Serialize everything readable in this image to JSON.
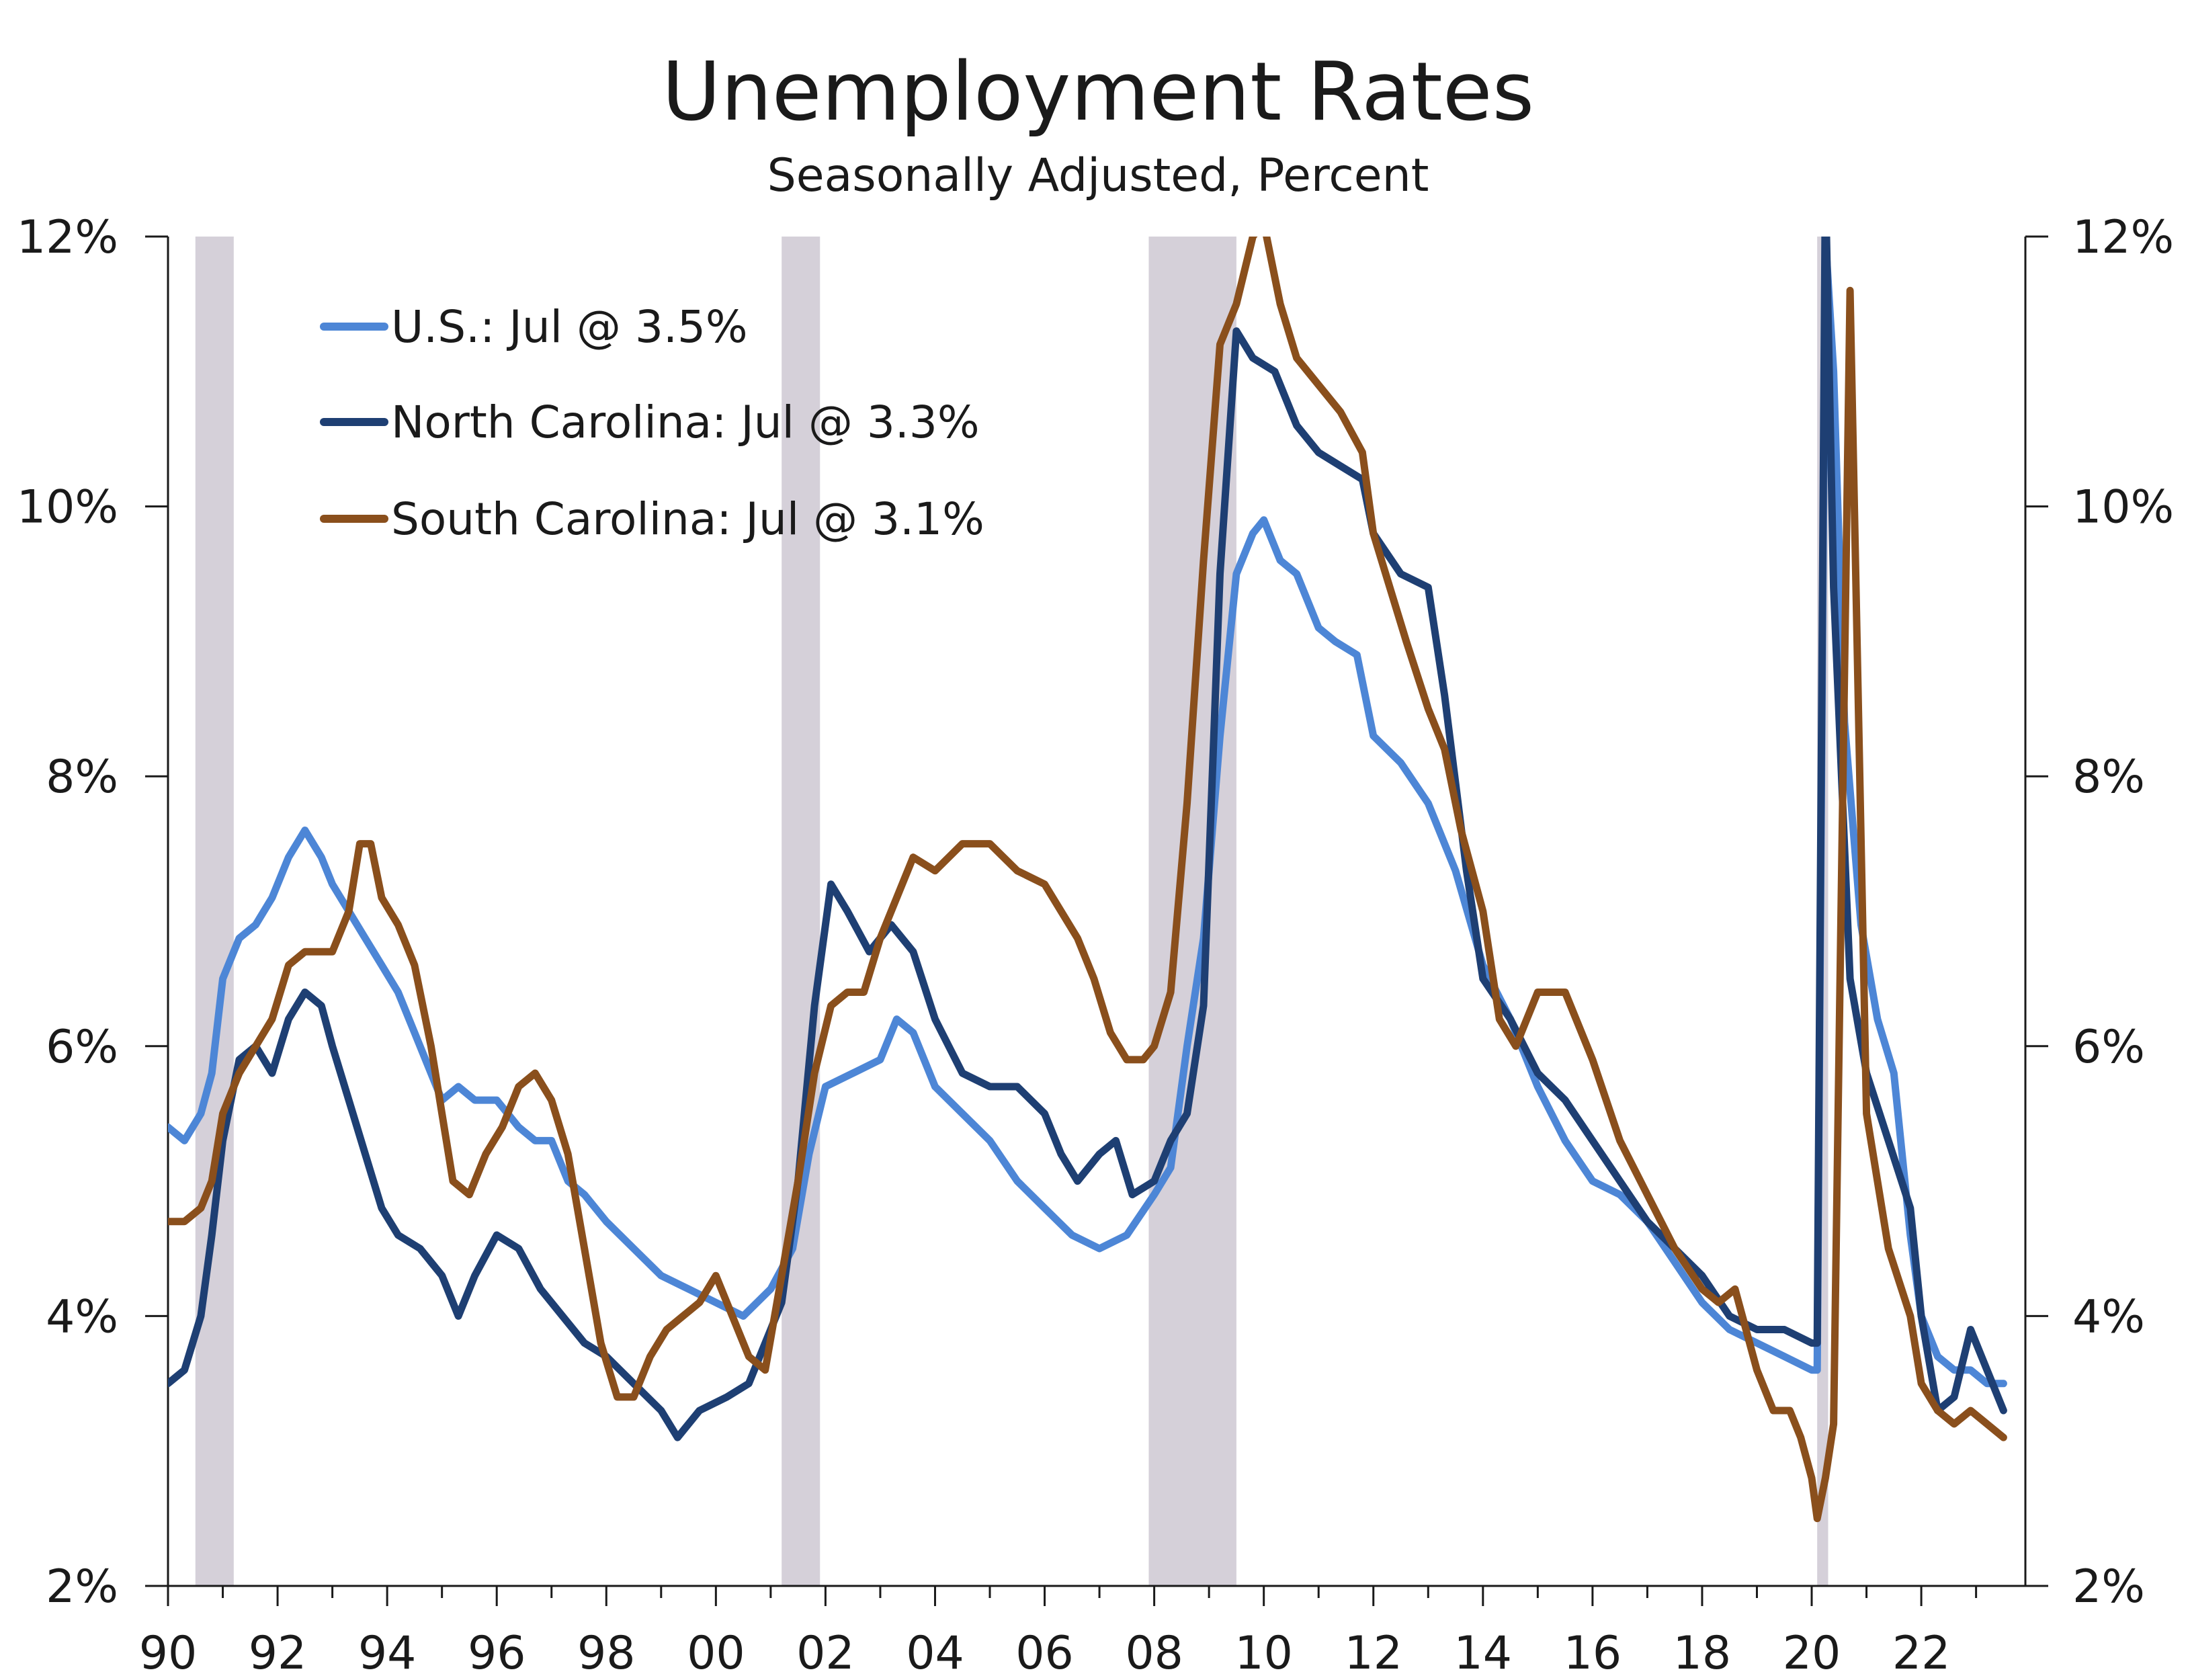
{
  "chart_data": {
    "type": "line",
    "title": "Unemployment Rates",
    "subtitle": "Seasonally Adjusted, Percent",
    "xlabel": "",
    "ylabel": "",
    "xlim": [
      1990.0,
      2023.9
    ],
    "ylim": [
      2,
      12
    ],
    "y_ticks": [
      2,
      4,
      6,
      8,
      10,
      12
    ],
    "y_tick_labels": [
      "2%",
      "4%",
      "6%",
      "8%",
      "10%",
      "12%"
    ],
    "x_major_ticks": [
      1990,
      1992,
      1994,
      1996,
      1998,
      2000,
      2002,
      2004,
      2006,
      2008,
      2010,
      2012,
      2014,
      2016,
      2018,
      2020,
      2022
    ],
    "x_tick_labels": [
      "90",
      "92",
      "94",
      "96",
      "98",
      "00",
      "02",
      "04",
      "06",
      "08",
      "10",
      "12",
      "14",
      "16",
      "18",
      "20",
      "22"
    ],
    "recessions": [
      [
        1990.5,
        1991.2
      ],
      [
        2001.2,
        2001.9
      ],
      [
        2007.9,
        2009.5
      ],
      [
        2020.1,
        2020.3
      ]
    ],
    "recession_color": "#d5d0d9",
    "legend": "top-left",
    "series": [
      {
        "name": "U.S.: Jul @ 3.5%",
        "color": "#4d86d6",
        "x": [
          1990.0,
          1990.3,
          1990.6,
          1990.8,
          1991.0,
          1991.3,
          1991.6,
          1991.9,
          1992.2,
          1992.5,
          1992.8,
          1993.0,
          1993.3,
          1993.6,
          1993.9,
          1994.2,
          1994.5,
          1994.8,
          1995.0,
          1995.3,
          1995.6,
          1996.0,
          1996.4,
          1996.7,
          1997.0,
          1997.3,
          1997.6,
          1998.0,
          1998.5,
          1999.0,
          1999.5,
          2000.0,
          2000.5,
          2001.0,
          2001.4,
          2001.7,
          2002.0,
          2002.5,
          2003.0,
          2003.3,
          2003.6,
          2004.0,
          2004.5,
          2005.0,
          2005.5,
          2006.0,
          2006.5,
          2007.0,
          2007.5,
          2008.0,
          2008.3,
          2008.6,
          2008.9,
          2009.2,
          2009.5,
          2009.8,
          2010.0,
          2010.3,
          2010.6,
          2011.0,
          2011.3,
          2011.7,
          2012.0,
          2012.5,
          2013.0,
          2013.5,
          2014.0,
          2014.5,
          2015.0,
          2015.5,
          2016.0,
          2016.5,
          2017.0,
          2017.5,
          2018.0,
          2018.5,
          2019.0,
          2019.5,
          2020.0,
          2020.1,
          2020.25,
          2020.4,
          2020.6,
          2020.9,
          2021.2,
          2021.5,
          2021.8,
          2022.0,
          2022.3,
          2022.6,
          2022.9,
          2023.2,
          2023.5
        ],
        "values": [
          5.4,
          5.3,
          5.5,
          5.8,
          6.5,
          6.8,
          6.9,
          7.1,
          7.4,
          7.6,
          7.4,
          7.2,
          7.0,
          6.8,
          6.6,
          6.4,
          6.1,
          5.8,
          5.6,
          5.7,
          5.6,
          5.6,
          5.4,
          5.3,
          5.3,
          5.0,
          4.9,
          4.7,
          4.5,
          4.3,
          4.2,
          4.1,
          4.0,
          4.2,
          4.5,
          5.2,
          5.7,
          5.8,
          5.9,
          6.2,
          6.1,
          5.7,
          5.5,
          5.3,
          5.0,
          4.8,
          4.6,
          4.5,
          4.6,
          4.9,
          5.1,
          6.0,
          6.8,
          8.3,
          9.5,
          9.8,
          9.9,
          9.6,
          9.5,
          9.1,
          9.0,
          8.9,
          8.3,
          8.1,
          7.8,
          7.3,
          6.6,
          6.2,
          5.7,
          5.3,
          5.0,
          4.9,
          4.7,
          4.4,
          4.1,
          3.9,
          3.8,
          3.7,
          3.6,
          3.6,
          12.0,
          11.0,
          8.4,
          6.9,
          6.2,
          5.8,
          4.6,
          4.0,
          3.7,
          3.6,
          3.6,
          3.5,
          3.5
        ]
      },
      {
        "name": "North Carolina: Jul @ 3.3%",
        "color": "#1e3f73",
        "x": [
          1990.0,
          1990.3,
          1990.6,
          1990.8,
          1991.0,
          1991.3,
          1991.6,
          1991.9,
          1992.2,
          1992.5,
          1992.8,
          1993.0,
          1993.3,
          1993.6,
          1993.9,
          1994.2,
          1994.6,
          1995.0,
          1995.3,
          1995.6,
          1996.0,
          1996.4,
          1996.8,
          1997.2,
          1997.6,
          1998.0,
          1998.5,
          1999.0,
          1999.3,
          1999.7,
          2000.2,
          2000.6,
          2000.9,
          2001.2,
          2001.5,
          2001.8,
          2002.1,
          2002.4,
          2002.8,
          2003.2,
          2003.6,
          2004.0,
          2004.5,
          2005.0,
          2005.5,
          2006.0,
          2006.3,
          2006.6,
          2007.0,
          2007.3,
          2007.6,
          2008.0,
          2008.3,
          2008.6,
          2008.9,
          2009.2,
          2009.5,
          2009.8,
          2010.2,
          2010.6,
          2011.0,
          2011.4,
          2011.8,
          2012.0,
          2012.5,
          2013.0,
          2013.3,
          2013.7,
          2014.0,
          2014.5,
          2015.0,
          2015.5,
          2016.0,
          2016.5,
          2017.0,
          2017.5,
          2018.0,
          2018.5,
          2019.0,
          2019.5,
          2020.0,
          2020.1,
          2020.25,
          2020.4,
          2020.7,
          2021.0,
          2021.4,
          2021.8,
          2022.0,
          2022.3,
          2022.6,
          2022.9,
          2023.2,
          2023.5
        ],
        "values": [
          3.5,
          3.6,
          4.0,
          4.6,
          5.3,
          5.9,
          6.0,
          5.8,
          6.2,
          6.4,
          6.3,
          6.0,
          5.6,
          5.2,
          4.8,
          4.6,
          4.5,
          4.3,
          4.0,
          4.3,
          4.6,
          4.5,
          4.2,
          4.0,
          3.8,
          3.7,
          3.5,
          3.3,
          3.1,
          3.3,
          3.4,
          3.5,
          3.8,
          4.1,
          5.0,
          6.3,
          7.2,
          7.0,
          6.7,
          6.9,
          6.7,
          6.2,
          5.8,
          5.7,
          5.7,
          5.5,
          5.2,
          5.0,
          5.2,
          5.3,
          4.9,
          5.0,
          5.3,
          5.5,
          6.3,
          9.5,
          11.3,
          11.1,
          11.0,
          10.6,
          10.4,
          10.3,
          10.2,
          9.8,
          9.5,
          9.4,
          8.6,
          7.3,
          6.5,
          6.2,
          5.8,
          5.6,
          5.3,
          5.0,
          4.7,
          4.5,
          4.3,
          4.0,
          3.9,
          3.9,
          3.8,
          3.8,
          12.4,
          9.4,
          6.5,
          5.8,
          5.3,
          4.8,
          4.0,
          3.3,
          3.4,
          3.9,
          3.6,
          3.3
        ]
      },
      {
        "name": "South Carolina: Jul @ 3.1%",
        "color": "#8a4f1c",
        "x": [
          1990.0,
          1990.3,
          1990.6,
          1990.8,
          1991.0,
          1991.3,
          1991.6,
          1991.9,
          1992.2,
          1992.5,
          1992.8,
          1993.0,
          1993.3,
          1993.5,
          1993.7,
          1993.9,
          1994.2,
          1994.5,
          1994.8,
          1995.0,
          1995.2,
          1995.5,
          1995.8,
          1996.1,
          1996.4,
          1996.7,
          1997.0,
          1997.3,
          1997.6,
          1997.9,
          1998.2,
          1998.5,
          1998.8,
          1999.1,
          1999.4,
          1999.7,
          2000.0,
          2000.3,
          2000.6,
          2000.9,
          2001.2,
          2001.5,
          2001.8,
          2002.1,
          2002.4,
          2002.7,
          2003.0,
          2003.3,
          2003.6,
          2004.0,
          2004.5,
          2005.0,
          2005.5,
          2006.0,
          2006.3,
          2006.6,
          2006.9,
          2007.2,
          2007.5,
          2007.8,
          2008.0,
          2008.3,
          2008.6,
          2008.9,
          2009.2,
          2009.5,
          2009.8,
          2010.0,
          2010.3,
          2010.6,
          2011.0,
          2011.4,
          2011.8,
          2012.0,
          2012.3,
          2012.6,
          2013.0,
          2013.3,
          2013.6,
          2014.0,
          2014.3,
          2014.6,
          2015.0,
          2015.5,
          2016.0,
          2016.5,
          2017.0,
          2017.5,
          2018.0,
          2018.3,
          2018.6,
          2019.0,
          2019.3,
          2019.6,
          2019.8,
          2020.0,
          2020.1,
          2020.25,
          2020.4,
          2020.7,
          2021.0,
          2021.4,
          2021.8,
          2022.0,
          2022.3,
          2022.6,
          2022.9,
          2023.2,
          2023.5
        ],
        "values": [
          4.7,
          4.7,
          4.8,
          5.0,
          5.5,
          5.8,
          6.0,
          6.2,
          6.6,
          6.7,
          6.7,
          6.7,
          7.0,
          7.5,
          7.5,
          7.1,
          6.9,
          6.6,
          6.0,
          5.5,
          5.0,
          4.9,
          5.2,
          5.4,
          5.7,
          5.8,
          5.6,
          5.2,
          4.5,
          3.8,
          3.4,
          3.4,
          3.7,
          3.9,
          4.0,
          4.1,
          4.3,
          4.0,
          3.7,
          3.6,
          4.3,
          5.0,
          5.8,
          6.3,
          6.4,
          6.4,
          6.8,
          7.1,
          7.4,
          7.3,
          7.5,
          7.5,
          7.3,
          7.2,
          7.0,
          6.8,
          6.5,
          6.1,
          5.9,
          5.9,
          6.0,
          6.4,
          7.8,
          9.6,
          11.2,
          11.5,
          12.0,
          12.1,
          11.5,
          11.1,
          10.9,
          10.7,
          10.4,
          9.8,
          9.4,
          9.0,
          8.5,
          8.2,
          7.6,
          7.0,
          6.2,
          6.0,
          6.4,
          6.4,
          5.9,
          5.3,
          4.9,
          4.5,
          4.2,
          4.1,
          4.2,
          3.6,
          3.3,
          3.3,
          3.1,
          2.8,
          2.5,
          2.8,
          3.2,
          11.6,
          5.5,
          4.5,
          4.0,
          3.5,
          3.3,
          3.2,
          3.3,
          3.2,
          3.1
        ]
      }
    ]
  }
}
